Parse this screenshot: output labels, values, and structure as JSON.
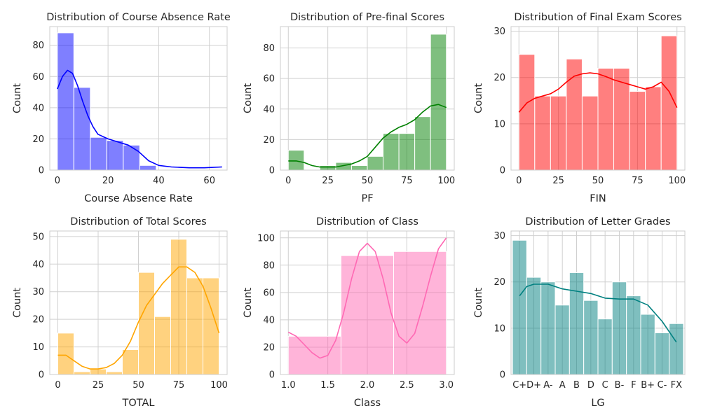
{
  "chart_data": [
    {
      "type": "histogram",
      "title": "Distribution of Course Absence Rate",
      "xlabel": "Course Absence Rate",
      "ylabel": "Count",
      "color": "#0000ff",
      "xlim": [
        -3,
        67
      ],
      "ylim": [
        0,
        92
      ],
      "xticks": [
        0,
        20,
        40,
        60
      ],
      "yticks": [
        0,
        20,
        40,
        60,
        80
      ],
      "bins": [
        {
          "x0": 0,
          "x1": 6.5,
          "count": 88
        },
        {
          "x0": 6.5,
          "x1": 13,
          "count": 53
        },
        {
          "x0": 13,
          "x1": 19.5,
          "count": 21
        },
        {
          "x0": 19.5,
          "x1": 26,
          "count": 19
        },
        {
          "x0": 26,
          "x1": 32.5,
          "count": 16
        },
        {
          "x0": 32.5,
          "x1": 39,
          "count": 3
        },
        {
          "x0": 39,
          "x1": 45.5,
          "count": 0
        },
        {
          "x0": 45.5,
          "x1": 52,
          "count": 0
        },
        {
          "x0": 52,
          "x1": 58.5,
          "count": 0
        },
        {
          "x0": 58.5,
          "x1": 65,
          "count": 0
        }
      ],
      "kde": [
        [
          0,
          52
        ],
        [
          2,
          60
        ],
        [
          4,
          64
        ],
        [
          6,
          62
        ],
        [
          8,
          54
        ],
        [
          10,
          44
        ],
        [
          12,
          35
        ],
        [
          14,
          28
        ],
        [
          16,
          23
        ],
        [
          20,
          20
        ],
        [
          24,
          18
        ],
        [
          28,
          16
        ],
        [
          32,
          12
        ],
        [
          36,
          6
        ],
        [
          40,
          3
        ],
        [
          45,
          2
        ],
        [
          52,
          1.5
        ],
        [
          58,
          1.5
        ],
        [
          65,
          2
        ]
      ]
    },
    {
      "type": "histogram",
      "title": "Distribution of Pre-final Scores",
      "xlabel": "PF",
      "ylabel": "Count",
      "color": "#008000",
      "xlim": [
        -5,
        105
      ],
      "ylim": [
        0,
        94
      ],
      "xticks": [
        0,
        25,
        50,
        75,
        100
      ],
      "yticks": [
        0,
        20,
        40,
        60,
        80
      ],
      "bins": [
        {
          "x0": 0,
          "x1": 10,
          "count": 13
        },
        {
          "x0": 10,
          "x1": 20,
          "count": 0
        },
        {
          "x0": 20,
          "x1": 30,
          "count": 3
        },
        {
          "x0": 30,
          "x1": 40,
          "count": 5
        },
        {
          "x0": 40,
          "x1": 50,
          "count": 3
        },
        {
          "x0": 50,
          "x1": 60,
          "count": 9
        },
        {
          "x0": 60,
          "x1": 70,
          "count": 24
        },
        {
          "x0": 70,
          "x1": 80,
          "count": 24
        },
        {
          "x0": 80,
          "x1": 90,
          "count": 35
        },
        {
          "x0": 90,
          "x1": 100,
          "count": 89
        }
      ],
      "kde": [
        [
          0,
          6
        ],
        [
          5,
          6
        ],
        [
          10,
          5
        ],
        [
          15,
          3
        ],
        [
          20,
          2
        ],
        [
          25,
          2
        ],
        [
          30,
          2
        ],
        [
          35,
          3
        ],
        [
          40,
          4
        ],
        [
          45,
          6
        ],
        [
          50,
          9
        ],
        [
          55,
          15
        ],
        [
          60,
          21
        ],
        [
          65,
          25
        ],
        [
          70,
          28
        ],
        [
          75,
          30
        ],
        [
          80,
          33
        ],
        [
          85,
          38
        ],
        [
          90,
          42
        ],
        [
          95,
          43
        ],
        [
          100,
          41
        ]
      ]
    },
    {
      "type": "histogram",
      "title": "Distribution of Final Exam Scores",
      "xlabel": "FIN",
      "ylabel": "Count",
      "color": "#ff0000",
      "xlim": [
        -5,
        105
      ],
      "ylim": [
        0,
        31
      ],
      "xticks": [
        0,
        25,
        50,
        75,
        100
      ],
      "yticks": [
        0,
        10,
        20,
        30
      ],
      "bins": [
        {
          "x0": 0,
          "x1": 10,
          "count": 25
        },
        {
          "x0": 10,
          "x1": 20,
          "count": 16
        },
        {
          "x0": 20,
          "x1": 30,
          "count": 16
        },
        {
          "x0": 30,
          "x1": 40,
          "count": 24
        },
        {
          "x0": 40,
          "x1": 50,
          "count": 16
        },
        {
          "x0": 50,
          "x1": 60,
          "count": 22
        },
        {
          "x0": 60,
          "x1": 70,
          "count": 22
        },
        {
          "x0": 70,
          "x1": 80,
          "count": 17
        },
        {
          "x0": 80,
          "x1": 90,
          "count": 18
        },
        {
          "x0": 90,
          "x1": 100,
          "count": 29
        }
      ],
      "kde": [
        [
          0,
          12.5
        ],
        [
          5,
          14.5
        ],
        [
          10,
          15.5
        ],
        [
          15,
          16
        ],
        [
          20,
          16.5
        ],
        [
          25,
          17.5
        ],
        [
          30,
          19
        ],
        [
          35,
          20.3
        ],
        [
          40,
          20.8
        ],
        [
          45,
          21
        ],
        [
          50,
          20.8
        ],
        [
          55,
          20.2
        ],
        [
          60,
          19.5
        ],
        [
          65,
          19
        ],
        [
          70,
          18.5
        ],
        [
          75,
          18
        ],
        [
          80,
          17.5
        ],
        [
          85,
          18
        ],
        [
          90,
          19
        ],
        [
          95,
          17
        ],
        [
          100,
          13.5
        ]
      ]
    },
    {
      "type": "histogram",
      "title": "Distribution of Total Scores",
      "xlabel": "TOTAL",
      "ylabel": "Count",
      "color": "#ffa500",
      "xlim": [
        -5,
        105
      ],
      "ylim": [
        0,
        52
      ],
      "xticks": [
        0,
        25,
        50,
        75,
        100
      ],
      "yticks": [
        0,
        10,
        20,
        30,
        40,
        50
      ],
      "bins": [
        {
          "x0": 0,
          "x1": 10,
          "count": 15
        },
        {
          "x0": 10,
          "x1": 20,
          "count": 1
        },
        {
          "x0": 20,
          "x1": 30,
          "count": 2
        },
        {
          "x0": 30,
          "x1": 40,
          "count": 1
        },
        {
          "x0": 40,
          "x1": 50,
          "count": 9
        },
        {
          "x0": 50,
          "x1": 60,
          "count": 37
        },
        {
          "x0": 60,
          "x1": 70,
          "count": 21
        },
        {
          "x0": 70,
          "x1": 80,
          "count": 49
        },
        {
          "x0": 80,
          "x1": 90,
          "count": 35
        },
        {
          "x0": 90,
          "x1": 100,
          "count": 35
        }
      ],
      "kde": [
        [
          0,
          7
        ],
        [
          5,
          7
        ],
        [
          10,
          5
        ],
        [
          15,
          3
        ],
        [
          20,
          2
        ],
        [
          25,
          2
        ],
        [
          30,
          2.5
        ],
        [
          35,
          4
        ],
        [
          40,
          7
        ],
        [
          45,
          12
        ],
        [
          50,
          19
        ],
        [
          55,
          25
        ],
        [
          60,
          29
        ],
        [
          65,
          33
        ],
        [
          70,
          36
        ],
        [
          75,
          39
        ],
        [
          80,
          39
        ],
        [
          85,
          37
        ],
        [
          90,
          32
        ],
        [
          95,
          24
        ],
        [
          100,
          15
        ]
      ]
    },
    {
      "type": "histogram",
      "title": "Distribution of Class",
      "xlabel": "Class",
      "ylabel": "Count",
      "color": "#ff69b4",
      "xlim": [
        0.9,
        3.1
      ],
      "ylim": [
        0,
        105
      ],
      "xticks": [
        1.0,
        1.5,
        2.0,
        2.5,
        3.0
      ],
      "xtick_labels": [
        "1.0",
        "1.5",
        "2.0",
        "2.5",
        "3.0"
      ],
      "yticks": [
        0,
        20,
        40,
        60,
        80,
        100
      ],
      "bins": [
        {
          "x0": 1.0,
          "x1": 1.667,
          "count": 28
        },
        {
          "x0": 1.667,
          "x1": 2.333,
          "count": 87
        },
        {
          "x0": 2.333,
          "x1": 3.0,
          "count": 90
        }
      ],
      "kde": [
        [
          1.0,
          31
        ],
        [
          1.1,
          28
        ],
        [
          1.2,
          22
        ],
        [
          1.3,
          16
        ],
        [
          1.4,
          12
        ],
        [
          1.5,
          14
        ],
        [
          1.6,
          25
        ],
        [
          1.7,
          45
        ],
        [
          1.8,
          70
        ],
        [
          1.9,
          90
        ],
        [
          2.0,
          96
        ],
        [
          2.1,
          90
        ],
        [
          2.2,
          70
        ],
        [
          2.3,
          45
        ],
        [
          2.4,
          28
        ],
        [
          2.5,
          23
        ],
        [
          2.6,
          30
        ],
        [
          2.7,
          50
        ],
        [
          2.8,
          72
        ],
        [
          2.9,
          92
        ],
        [
          3.0,
          100
        ]
      ]
    },
    {
      "type": "histogram",
      "title": "Distribution of Letter Grades",
      "xlabel": "LG",
      "ylabel": "Count",
      "color": "#008080",
      "ylim": [
        0,
        31
      ],
      "categories": [
        "C+",
        "D+",
        "A-",
        "A",
        "B",
        "D",
        "C",
        "B-",
        "F",
        "B+",
        "C-",
        "FX"
      ],
      "values": [
        29,
        21,
        20,
        15,
        22,
        16,
        12,
        20,
        17,
        13,
        9,
        11
      ],
      "yticks": [
        0,
        10,
        20,
        30
      ],
      "kde": [
        [
          0,
          17
        ],
        [
          0.5,
          19
        ],
        [
          1,
          19.5
        ],
        [
          2,
          19.5
        ],
        [
          3,
          18.5
        ],
        [
          4,
          18
        ],
        [
          5,
          17.5
        ],
        [
          6,
          16.5
        ],
        [
          7,
          16.3
        ],
        [
          8,
          16.3
        ],
        [
          9,
          15
        ],
        [
          10,
          11.5
        ],
        [
          11,
          7
        ]
      ]
    }
  ]
}
